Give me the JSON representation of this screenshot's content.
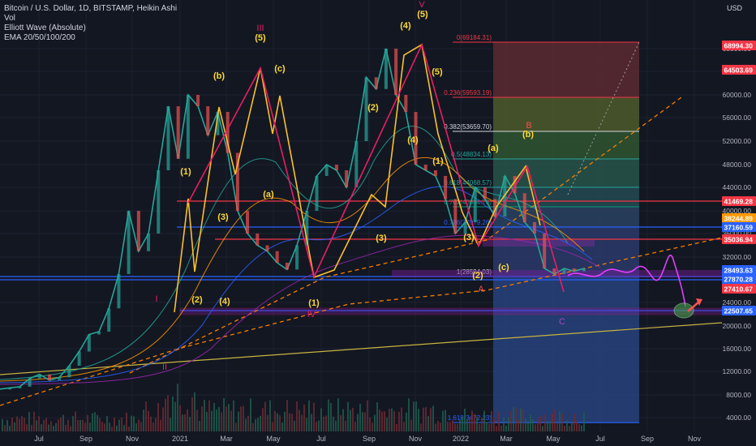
{
  "legend": {
    "title": "Bitcoin / U.S. Dollar, 1D, BITSTAMP, Heikin Ashi",
    "vol": "Vol",
    "indicator1": "Elliott Wave (Absolute)",
    "indicator2": "EMA 20/50/100/200"
  },
  "chart_data": {
    "type": "line",
    "yaxis_unit": "USD",
    "y_scale": "log",
    "y_ticks": [
      "68000.00",
      "64000.00",
      "60000.00",
      "56000.00",
      "52000.00",
      "48000.00",
      "44000.00",
      "40000.00",
      "36000.00",
      "32000.00",
      "28000.00",
      "24000.00",
      "20000.00",
      "16000.00",
      "12000.00",
      "8000.00",
      "4000.00"
    ],
    "x_ticks": [
      "Jul",
      "Sep",
      "Nov",
      "2021",
      "Mar",
      "May",
      "Jul",
      "Sep",
      "Nov",
      "2022",
      "Mar",
      "May",
      "Jul",
      "Sep",
      "Nov"
    ],
    "price_labels": [
      {
        "text": "68994.30",
        "color": "#f23645"
      },
      {
        "text": "64503.69",
        "color": "#f23645"
      },
      {
        "text": "41469.28",
        "color": "#f23645"
      },
      {
        "text": "38244.89",
        "color": "#ff9800"
      },
      {
        "text": "37160.59",
        "color": "#2962ff"
      },
      {
        "text": "35036.94",
        "color": "#f23645"
      },
      {
        "text": "28493.63",
        "color": "#2962ff"
      },
      {
        "text": "27870.28",
        "color": "#2962ff"
      },
      {
        "text": "27410.67",
        "color": "#f23645"
      },
      {
        "text": "22507.65",
        "color": "#2962ff"
      }
    ],
    "fib_levels": [
      {
        "text": "0(69184.31)",
        "color": "#f23645"
      },
      {
        "text": "0.236(59593.19)",
        "color": "#f23645"
      },
      {
        "text": "0.382(53659.70)",
        "color": "#d1d4dc"
      },
      {
        "text": "0.5(48834.13)",
        "color": "#26a69a"
      },
      {
        "text": "0.618(44068.57)",
        "color": "#26a69a"
      },
      {
        "text": "0.702(40844.73)",
        "color": "#089981"
      },
      {
        "text": "0.786(37079.26)",
        "color": "#2962ff"
      },
      {
        "text": "1(28594.03)",
        "color": "#d1d4dc"
      },
      {
        "text": "1.618(3472.23)",
        "color": "#2962ff"
      }
    ],
    "wave_labels_yellow": [
      "(1)",
      "(2)",
      "(3)",
      "(4)",
      "(5)",
      "(a)",
      "(b)",
      "(c)",
      "(1)",
      "(2)",
      "(3)",
      "(4)",
      "(5)",
      "(1)",
      "(2)",
      "(3)",
      "(4)",
      "(5)",
      "(a)",
      "(b)",
      "(c)"
    ],
    "wave_labels_purple": [
      "I",
      "II",
      "III",
      "IV",
      "V"
    ],
    "wave_labels_red": [
      "A",
      "B",
      "C"
    ],
    "series": [
      {
        "values": [
          9000,
          9200,
          9400,
          10800,
          11500,
          10500,
          11000,
          13000,
          15500,
          18500,
          19000,
          23000,
          29000,
          40000,
          33000,
          36000,
          47000,
          58000,
          49000,
          60000,
          58000,
          53000,
          57000,
          50000,
          40000,
          36000,
          34000,
          33000,
          31000,
          29800,
          34000,
          40000,
          46000,
          48000,
          47000,
          44000,
          52000,
          63000,
          61000,
          68000,
          60000,
          57000,
          48000,
          47000,
          46000,
          42000,
          36000,
          38000,
          44000,
          42000,
          39000,
          46000,
          43000,
          38000,
          36000,
          30000,
          29000,
          30000,
          29500,
          30000
        ]
      }
    ]
  }
}
